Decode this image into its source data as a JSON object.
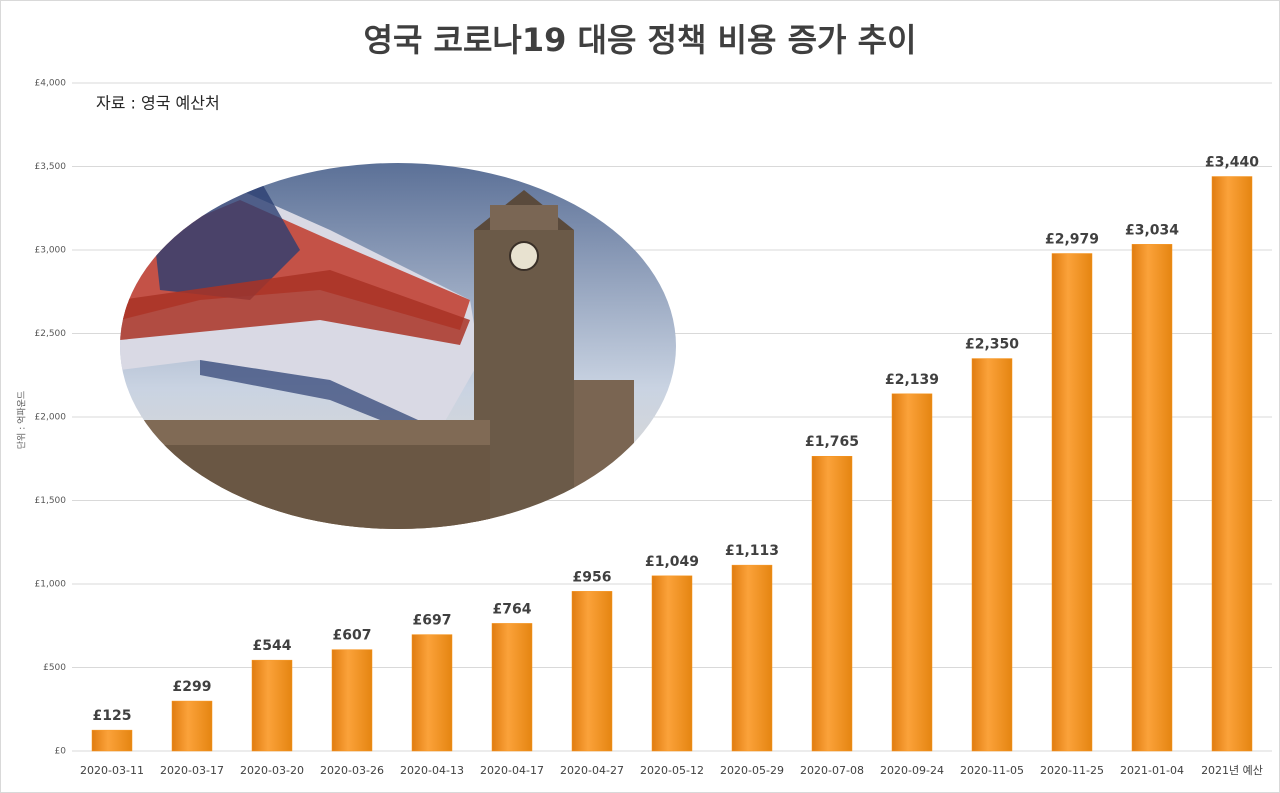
{
  "chart_data": {
    "type": "bar",
    "title": "영국 코로나19 대응 정책 비용 증가 추이",
    "note": "자료 : 영국 예산처",
    "y_label": "단위 : 억파운드",
    "categories": [
      "2020-03-11",
      "2020-03-17",
      "2020-03-20",
      "2020-03-26",
      "2020-04-13",
      "2020-04-17",
      "2020-04-27",
      "2020-05-12",
      "2020-05-29",
      "2020-07-08",
      "2020-09-24",
      "2020-11-05",
      "2020-11-25",
      "2021-01-04",
      "2021년 예산"
    ],
    "values": [
      125,
      299,
      544,
      607,
      697,
      764,
      956,
      1049,
      1113,
      1765,
      2139,
      2350,
      2979,
      3034,
      3440
    ],
    "value_labels": [
      "£125",
      "£299",
      "£544",
      "£607",
      "£697",
      "£764",
      "£956",
      "£1,049",
      "£1,113",
      "£1,765",
      "£2,139",
      "£2,350",
      "£2,979",
      "£3,034",
      "£3,440"
    ],
    "color": "#f7941d",
    "ylim": [
      0,
      4000
    ],
    "yticks": [
      {
        "value": 0,
        "label": "£0"
      },
      {
        "value": 500,
        "label": "£500"
      },
      {
        "value": 1000,
        "label": "£1,000"
      },
      {
        "value": 1500,
        "label": "£1,500"
      },
      {
        "value": 2000,
        "label": "£2,000"
      },
      {
        "value": 2500,
        "label": "£2,500"
      },
      {
        "value": 3000,
        "label": "£3,000"
      },
      {
        "value": 3500,
        "label": "£3,500"
      },
      {
        "value": 4000,
        "label": "£4,000"
      }
    ],
    "grid": true
  }
}
